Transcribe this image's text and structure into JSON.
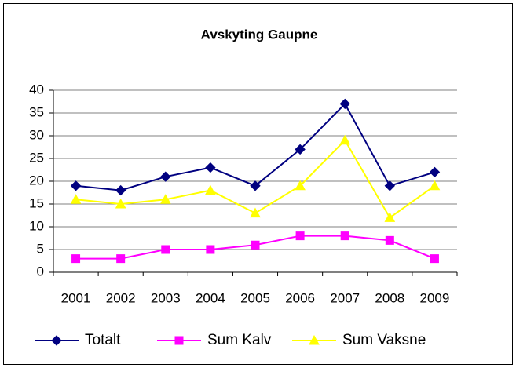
{
  "chart_data": {
    "type": "line",
    "title": "Avskyting Gaupne",
    "categories": [
      "2001",
      "2002",
      "2003",
      "2004",
      "2005",
      "2006",
      "2007",
      "2008",
      "2009"
    ],
    "series": [
      {
        "name": "Totalt",
        "color": "#000080",
        "marker": "diamond",
        "values": [
          19,
          18,
          21,
          23,
          19,
          27,
          37,
          19,
          22
        ]
      },
      {
        "name": "Sum Kalv",
        "color": "#ff00ff",
        "marker": "square",
        "values": [
          3,
          3,
          5,
          5,
          6,
          8,
          8,
          7,
          3
        ]
      },
      {
        "name": "Sum Vaksne",
        "color": "#ffff00",
        "marker": "triangle",
        "values": [
          16,
          15,
          16,
          18,
          13,
          19,
          29,
          12,
          19
        ]
      }
    ],
    "ylim": [
      0,
      40
    ],
    "yticks": [
      0,
      5,
      10,
      15,
      20,
      25,
      30,
      35,
      40
    ],
    "grid": true,
    "legend": "bottom"
  }
}
